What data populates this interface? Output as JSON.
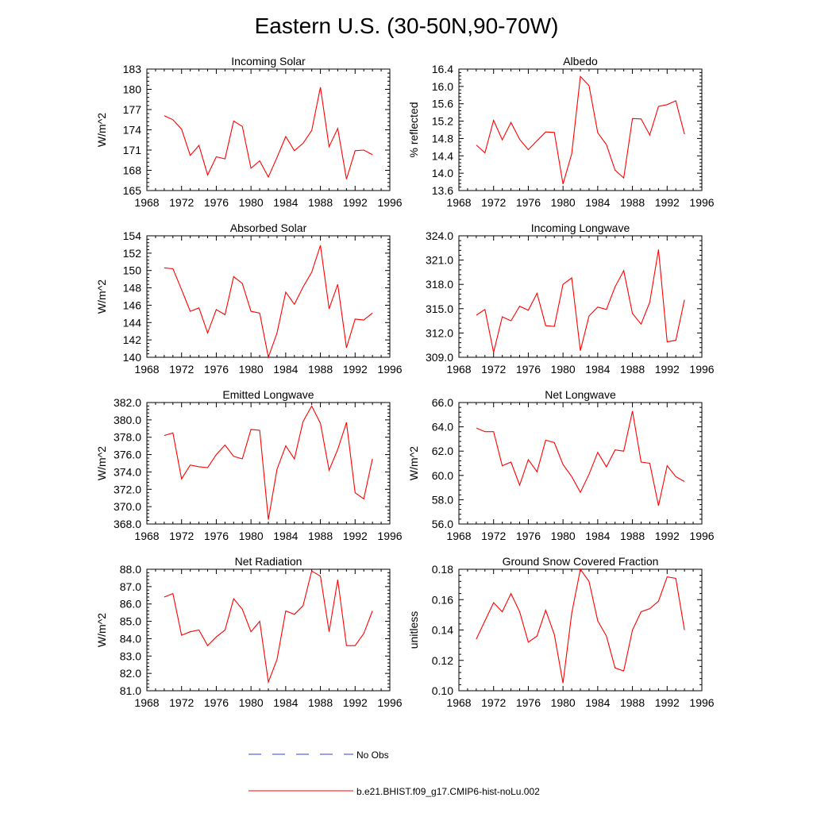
{
  "page_title": "Eastern U.S. (30-50N,90-70W)",
  "legend": {
    "entries": [
      {
        "label": "No Obs",
        "color": "#3344cc",
        "style": "dashed"
      },
      {
        "label": "b.e21.BHIST.f09_g17.CMIP6-hist-noLu.002",
        "color": "#ff0000",
        "style": "solid"
      }
    ]
  },
  "chart_data": [
    {
      "type": "line",
      "title": "Incoming Solar",
      "ylabel": "W/m^2",
      "xlim": [
        1968,
        1996
      ],
      "ylim": [
        165,
        183
      ],
      "yticks": [
        "165",
        "168",
        "171",
        "174",
        "177",
        "180",
        "183"
      ],
      "xticks": [
        "1968",
        "1972",
        "1976",
        "1980",
        "1984",
        "1988",
        "1992",
        "1996"
      ],
      "series": [
        {
          "color": "#ff0000",
          "x": [
            1970,
            1971,
            1972,
            1973,
            1974,
            1975,
            1976,
            1977,
            1978,
            1979,
            1980,
            1981,
            1982,
            1983,
            1984,
            1985,
            1986,
            1987,
            1988,
            1989,
            1990,
            1991,
            1992,
            1993,
            1994
          ],
          "values": [
            176.1,
            175.5,
            174.1,
            170.2,
            171.7,
            167.3,
            170.0,
            169.7,
            175.3,
            174.5,
            168.3,
            169.4,
            167.0,
            169.9,
            173.0,
            170.9,
            172.0,
            173.9,
            180.3,
            171.5,
            174.2,
            166.7,
            170.9,
            171.0,
            170.3
          ]
        }
      ]
    },
    {
      "type": "line",
      "title": "Albedo",
      "ylabel": "% reflected",
      "xlim": [
        1968,
        1996
      ],
      "ylim": [
        13.6,
        16.4
      ],
      "yticks": [
        "13.6",
        "14.0",
        "14.4",
        "14.8",
        "15.2",
        "15.6",
        "16.0",
        "16.4"
      ],
      "xticks": [
        "1968",
        "1972",
        "1976",
        "1980",
        "1984",
        "1988",
        "1992",
        "1996"
      ],
      "series": [
        {
          "color": "#ff0000",
          "x": [
            1970,
            1971,
            1972,
            1973,
            1974,
            1975,
            1976,
            1977,
            1978,
            1979,
            1980,
            1981,
            1982,
            1983,
            1984,
            1985,
            1986,
            1987,
            1988,
            1989,
            1990,
            1991,
            1992,
            1993,
            1994
          ],
          "values": [
            14.65,
            14.47,
            15.22,
            14.77,
            15.17,
            14.78,
            14.54,
            14.75,
            14.95,
            14.94,
            13.75,
            14.45,
            16.23,
            16.02,
            14.93,
            14.66,
            14.07,
            13.89,
            15.26,
            15.25,
            14.88,
            15.54,
            15.58,
            15.67,
            14.9
          ]
        }
      ]
    },
    {
      "type": "line",
      "title": "Absorbed Solar",
      "ylabel": "W/m^2",
      "xlim": [
        1968,
        1996
      ],
      "ylim": [
        140,
        154
      ],
      "yticks": [
        "140",
        "142",
        "144",
        "146",
        "148",
        "150",
        "152",
        "154"
      ],
      "xticks": [
        "1968",
        "1972",
        "1976",
        "1980",
        "1984",
        "1988",
        "1992",
        "1996"
      ],
      "series": [
        {
          "color": "#ff0000",
          "x": [
            1970,
            1971,
            1972,
            1973,
            1974,
            1975,
            1976,
            1977,
            1978,
            1979,
            1980,
            1981,
            1982,
            1983,
            1984,
            1985,
            1986,
            1987,
            1988,
            1989,
            1990,
            1991,
            1992,
            1993,
            1994
          ],
          "values": [
            150.3,
            150.2,
            147.8,
            145.3,
            145.7,
            142.8,
            145.5,
            144.9,
            149.3,
            148.5,
            145.3,
            145.1,
            140.0,
            142.8,
            147.5,
            146.1,
            148.1,
            149.8,
            152.9,
            145.6,
            148.4,
            141.1,
            144.4,
            144.3,
            145.1
          ]
        }
      ]
    },
    {
      "type": "line",
      "title": "Incoming Longwave",
      "ylabel": "",
      "xlim": [
        1968,
        1996
      ],
      "ylim": [
        309.0,
        324.0
      ],
      "yticks": [
        "309.0",
        "312.0",
        "315.0",
        "318.0",
        "321.0",
        "324.0"
      ],
      "xticks": [
        "1968",
        "1972",
        "1976",
        "1980",
        "1984",
        "1988",
        "1992",
        "1996"
      ],
      "series": [
        {
          "color": "#ff0000",
          "x": [
            1970,
            1971,
            1972,
            1973,
            1974,
            1975,
            1976,
            1977,
            1978,
            1979,
            1980,
            1981,
            1982,
            1983,
            1984,
            1985,
            1986,
            1987,
            1988,
            1989,
            1990,
            1991,
            1992,
            1993,
            1994
          ],
          "values": [
            314.2,
            314.9,
            309.6,
            314.0,
            313.5,
            315.3,
            314.8,
            316.9,
            312.9,
            312.8,
            318.0,
            318.8,
            309.8,
            314.1,
            315.2,
            314.9,
            317.7,
            319.7,
            314.4,
            313.1,
            315.8,
            322.3,
            310.9,
            311.1,
            316.1
          ]
        }
      ]
    },
    {
      "type": "line",
      "title": "Emitted Longwave",
      "ylabel": "W/m^2",
      "xlim": [
        1968,
        1996
      ],
      "ylim": [
        368.0,
        382.0
      ],
      "yticks": [
        "368.0",
        "370.0",
        "372.0",
        "374.0",
        "376.0",
        "378.0",
        "380.0",
        "382.0"
      ],
      "xticks": [
        "1968",
        "1972",
        "1976",
        "1980",
        "1984",
        "1988",
        "1992",
        "1996"
      ],
      "series": [
        {
          "color": "#ff0000",
          "x": [
            1970,
            1971,
            1972,
            1973,
            1974,
            1975,
            1976,
            1977,
            1978,
            1979,
            1980,
            1981,
            1982,
            1983,
            1984,
            1985,
            1986,
            1987,
            1988,
            1989,
            1990,
            1991,
            1992,
            1993,
            1994
          ],
          "values": [
            378.2,
            378.5,
            373.2,
            374.8,
            374.6,
            374.5,
            376.0,
            377.1,
            375.8,
            375.5,
            378.9,
            378.8,
            368.5,
            374.3,
            377.0,
            375.5,
            379.8,
            381.6,
            379.6,
            374.2,
            376.6,
            379.7,
            371.6,
            370.9,
            375.5
          ]
        }
      ]
    },
    {
      "type": "line",
      "title": "Net Longwave",
      "ylabel": "W/m^2",
      "xlim": [
        1968,
        1996
      ],
      "ylim": [
        56.0,
        66.0
      ],
      "yticks": [
        "56.0",
        "58.0",
        "60.0",
        "62.0",
        "64.0",
        "66.0"
      ],
      "xticks": [
        "1968",
        "1972",
        "1976",
        "1980",
        "1984",
        "1988",
        "1992",
        "1996"
      ],
      "series": [
        {
          "color": "#ff0000",
          "x": [
            1970,
            1971,
            1972,
            1973,
            1974,
            1975,
            1976,
            1977,
            1978,
            1979,
            1980,
            1981,
            1982,
            1983,
            1984,
            1985,
            1986,
            1987,
            1988,
            1989,
            1990,
            1991,
            1992,
            1993,
            1994
          ],
          "values": [
            63.9,
            63.6,
            63.6,
            60.8,
            61.1,
            59.2,
            61.3,
            60.3,
            62.9,
            62.7,
            60.9,
            59.9,
            58.6,
            60.1,
            61.9,
            60.7,
            62.1,
            62.0,
            65.3,
            61.1,
            61.0,
            57.5,
            60.8,
            59.9,
            59.5
          ]
        }
      ]
    },
    {
      "type": "line",
      "title": "Net Radiation",
      "ylabel": "W/m^2",
      "xlim": [
        1968,
        1996
      ],
      "ylim": [
        81.0,
        88.0
      ],
      "yticks": [
        "81.0",
        "82.0",
        "83.0",
        "84.0",
        "85.0",
        "86.0",
        "87.0",
        "88.0"
      ],
      "xticks": [
        "1968",
        "1972",
        "1976",
        "1980",
        "1984",
        "1988",
        "1992",
        "1996"
      ],
      "series": [
        {
          "color": "#ff0000",
          "x": [
            1970,
            1971,
            1972,
            1973,
            1974,
            1975,
            1976,
            1977,
            1978,
            1979,
            1980,
            1981,
            1982,
            1983,
            1984,
            1985,
            1986,
            1987,
            1988,
            1989,
            1990,
            1991,
            1992,
            1993,
            1994
          ],
          "values": [
            86.4,
            86.6,
            84.2,
            84.4,
            84.5,
            83.6,
            84.1,
            84.5,
            86.3,
            85.7,
            84.4,
            85.0,
            81.5,
            82.8,
            85.6,
            85.4,
            85.9,
            87.9,
            87.6,
            84.4,
            87.4,
            83.6,
            83.6,
            84.3,
            85.6
          ]
        }
      ]
    },
    {
      "type": "line",
      "title": "Ground Snow Covered Fraction",
      "ylabel": "unitless",
      "xlim": [
        1968,
        1996
      ],
      "ylim": [
        0.1,
        0.18
      ],
      "yticks": [
        "0.10",
        "0.12",
        "0.14",
        "0.16",
        "0.18"
      ],
      "xticks": [
        "1968",
        "1972",
        "1976",
        "1980",
        "1984",
        "1988",
        "1992",
        "1996"
      ],
      "series": [
        {
          "color": "#ff0000",
          "x": [
            1970,
            1971,
            1972,
            1973,
            1974,
            1975,
            1976,
            1977,
            1978,
            1979,
            1980,
            1981,
            1982,
            1983,
            1984,
            1985,
            1986,
            1987,
            1988,
            1989,
            1990,
            1991,
            1992,
            1993,
            1994
          ],
          "values": [
            0.134,
            0.146,
            0.158,
            0.152,
            0.164,
            0.152,
            0.132,
            0.136,
            0.153,
            0.137,
            0.105,
            0.151,
            0.18,
            0.172,
            0.146,
            0.136,
            0.115,
            0.113,
            0.14,
            0.152,
            0.154,
            0.159,
            0.175,
            0.174,
            0.14
          ]
        }
      ]
    }
  ]
}
